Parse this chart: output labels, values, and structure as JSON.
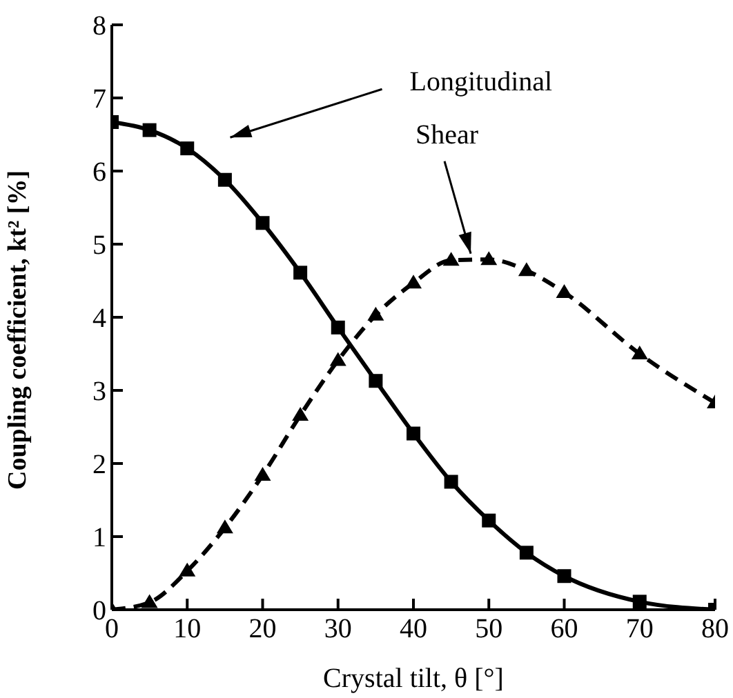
{
  "chart_data": {
    "type": "line",
    "xlabel": "Crystal tilt, θ [°]",
    "ylabel": "Coupling coefficient, kt² [%]",
    "x": [
      0,
      5,
      10,
      15,
      20,
      25,
      30,
      35,
      40,
      45,
      50,
      55,
      60,
      70,
      80
    ],
    "series": [
      {
        "color": "#000000",
        "marker": "square",
        "line_style": "solid",
        "values": [
          6.67,
          6.56,
          6.31,
          5.88,
          5.29,
          4.61,
          3.86,
          3.13,
          2.41,
          1.75,
          1.22,
          0.78,
          0.46,
          0.11,
          0
        ]
      },
      {
        "color": "#000000",
        "marker": "triangle",
        "line_style": "dashed",
        "values": [
          0,
          0.1,
          0.53,
          1.12,
          1.84,
          2.66,
          3.41,
          4.03,
          4.47,
          4.78,
          4.79,
          4.64,
          4.34,
          3.5,
          2.83
        ]
      }
    ],
    "annotations": [
      "Longitudinal",
      "Shear"
    ],
    "xlim": [
      0,
      80
    ],
    "xticks": [
      0,
      10,
      20,
      30,
      40,
      50,
      60,
      70,
      80
    ],
    "ylim": [
      0,
      8
    ],
    "yticks": [
      0,
      1,
      2,
      3,
      4,
      5,
      6,
      7,
      8
    ],
    "grid": false,
    "legend": false
  }
}
